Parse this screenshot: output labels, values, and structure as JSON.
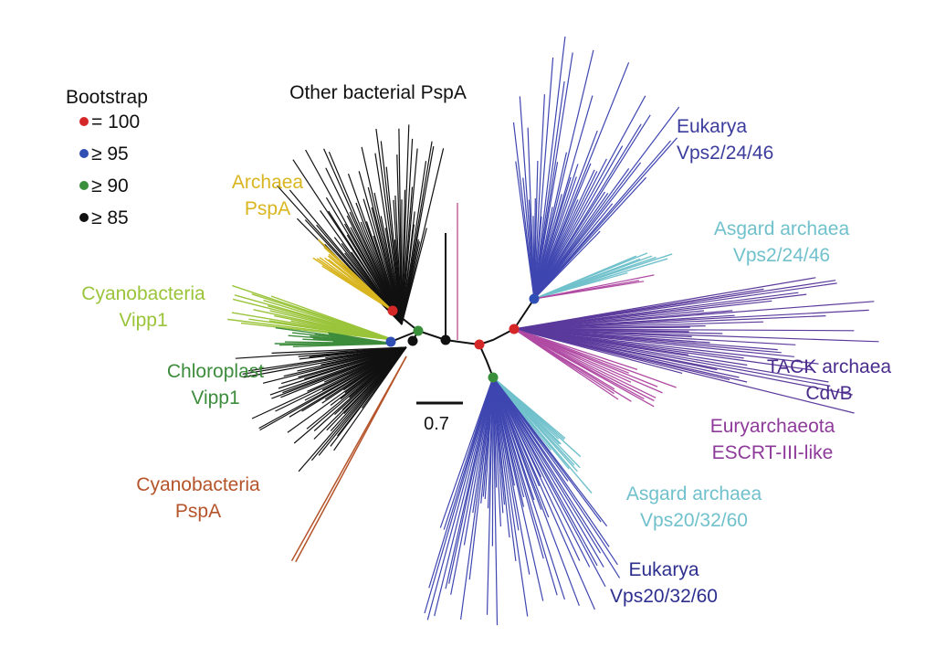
{
  "legend": {
    "title": "Bootstrap",
    "items": [
      {
        "label": "= 100",
        "color": "#d62728"
      },
      {
        "label": "≥ 95",
        "color": "#2f4fb5"
      },
      {
        "label": "≥ 90",
        "color": "#3a8f3a"
      },
      {
        "label": "≥ 85",
        "color": "#111111"
      }
    ]
  },
  "scale_bar": {
    "label": "0.7"
  },
  "clade_labels": {
    "other_bacterial": {
      "lines": [
        "Other bacterial PspA"
      ],
      "color": "#111111"
    },
    "archaea_pspa": {
      "lines": [
        "Archaea",
        "PspA"
      ],
      "color": "#d9b520"
    },
    "cyanobacteria_vipp1": {
      "lines": [
        "Cyanobacteria",
        "Vipp1"
      ],
      "color": "#9ac43a"
    },
    "chloroplast_vipp1": {
      "lines": [
        "Chloroplast",
        "Vipp1"
      ],
      "color": "#3c8c3c"
    },
    "cyanobacteria_pspa": {
      "lines": [
        "Cyanobacteria",
        "PspA"
      ],
      "color": "#b5542a"
    },
    "eukarya_vps2": {
      "lines": [
        "Eukarya",
        "Vps2/24/46"
      ],
      "color": "#3b3c9c"
    },
    "asgard_vps2": {
      "lines": [
        "Asgard archaea",
        "Vps2/24/46"
      ],
      "color": "#70c1cc"
    },
    "tack_cdvb": {
      "lines": [
        "TACK archaea",
        "CdvB"
      ],
      "color": "#4a2c8c"
    },
    "euryarchaeota": {
      "lines": [
        "Euryarchaeota",
        "ESCRT-III-like"
      ],
      "color": "#8e3a9a"
    },
    "asgard_vps20": {
      "lines": [
        "Asgard archaea",
        "Vps20/32/60"
      ],
      "color": "#70c1cc"
    },
    "eukarya_vps20": {
      "lines": [
        "Eukarya",
        "Vps20/32/60"
      ],
      "color": "#2d2f8f"
    }
  },
  "branch_colors": {
    "black": "#111111",
    "yellow": "#d9b520",
    "lightgreen": "#9ac43a",
    "green": "#3c8c3c",
    "orange": "#b5542a",
    "blue": "#3f46b0",
    "cyan": "#70c1cc",
    "purple": "#5b3a9c",
    "magenta": "#b04aa3",
    "pink": "#c4679a"
  }
}
